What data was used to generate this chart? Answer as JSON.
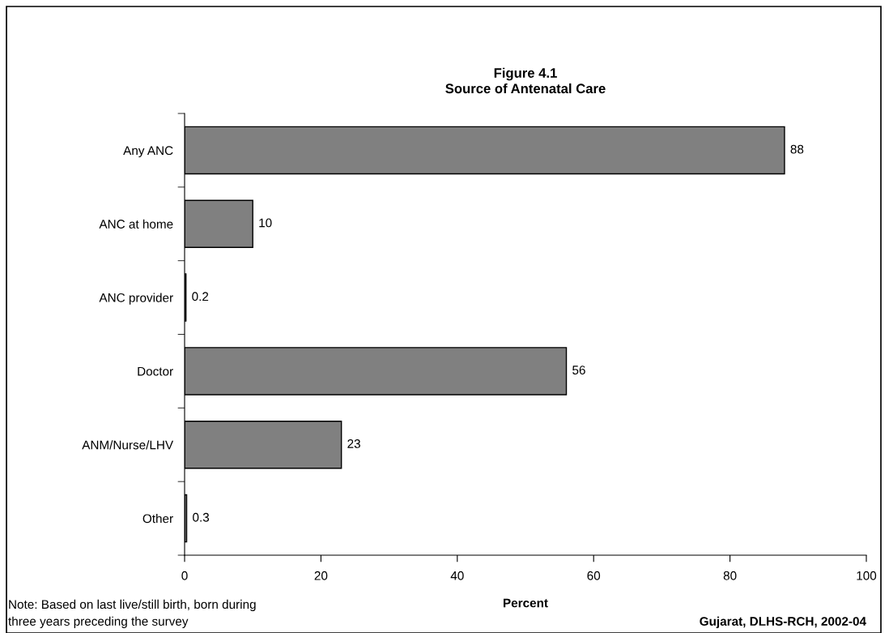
{
  "chart_data": {
    "type": "bar",
    "orientation": "horizontal",
    "title": "Figure 4.1\nSource of Antenatal Care",
    "xlabel": "Percent",
    "categories": [
      "Any ANC",
      "ANC at home",
      "ANC provider",
      "Doctor",
      "ANM/Nurse/LHV",
      "Other"
    ],
    "values": [
      88,
      10,
      0.2,
      56,
      23,
      0.3
    ],
    "color": "#808080",
    "data_labels": true,
    "xlim": [
      0,
      100
    ],
    "xticks": [
      0,
      20,
      40,
      60,
      80,
      100
    ],
    "grid": false,
    "legend": false,
    "annotations": [
      "Note: Based on last live/still birth, born during\nthree years preceding the survey",
      "Gujarat, DLHS-RCH, 2002-04"
    ]
  }
}
